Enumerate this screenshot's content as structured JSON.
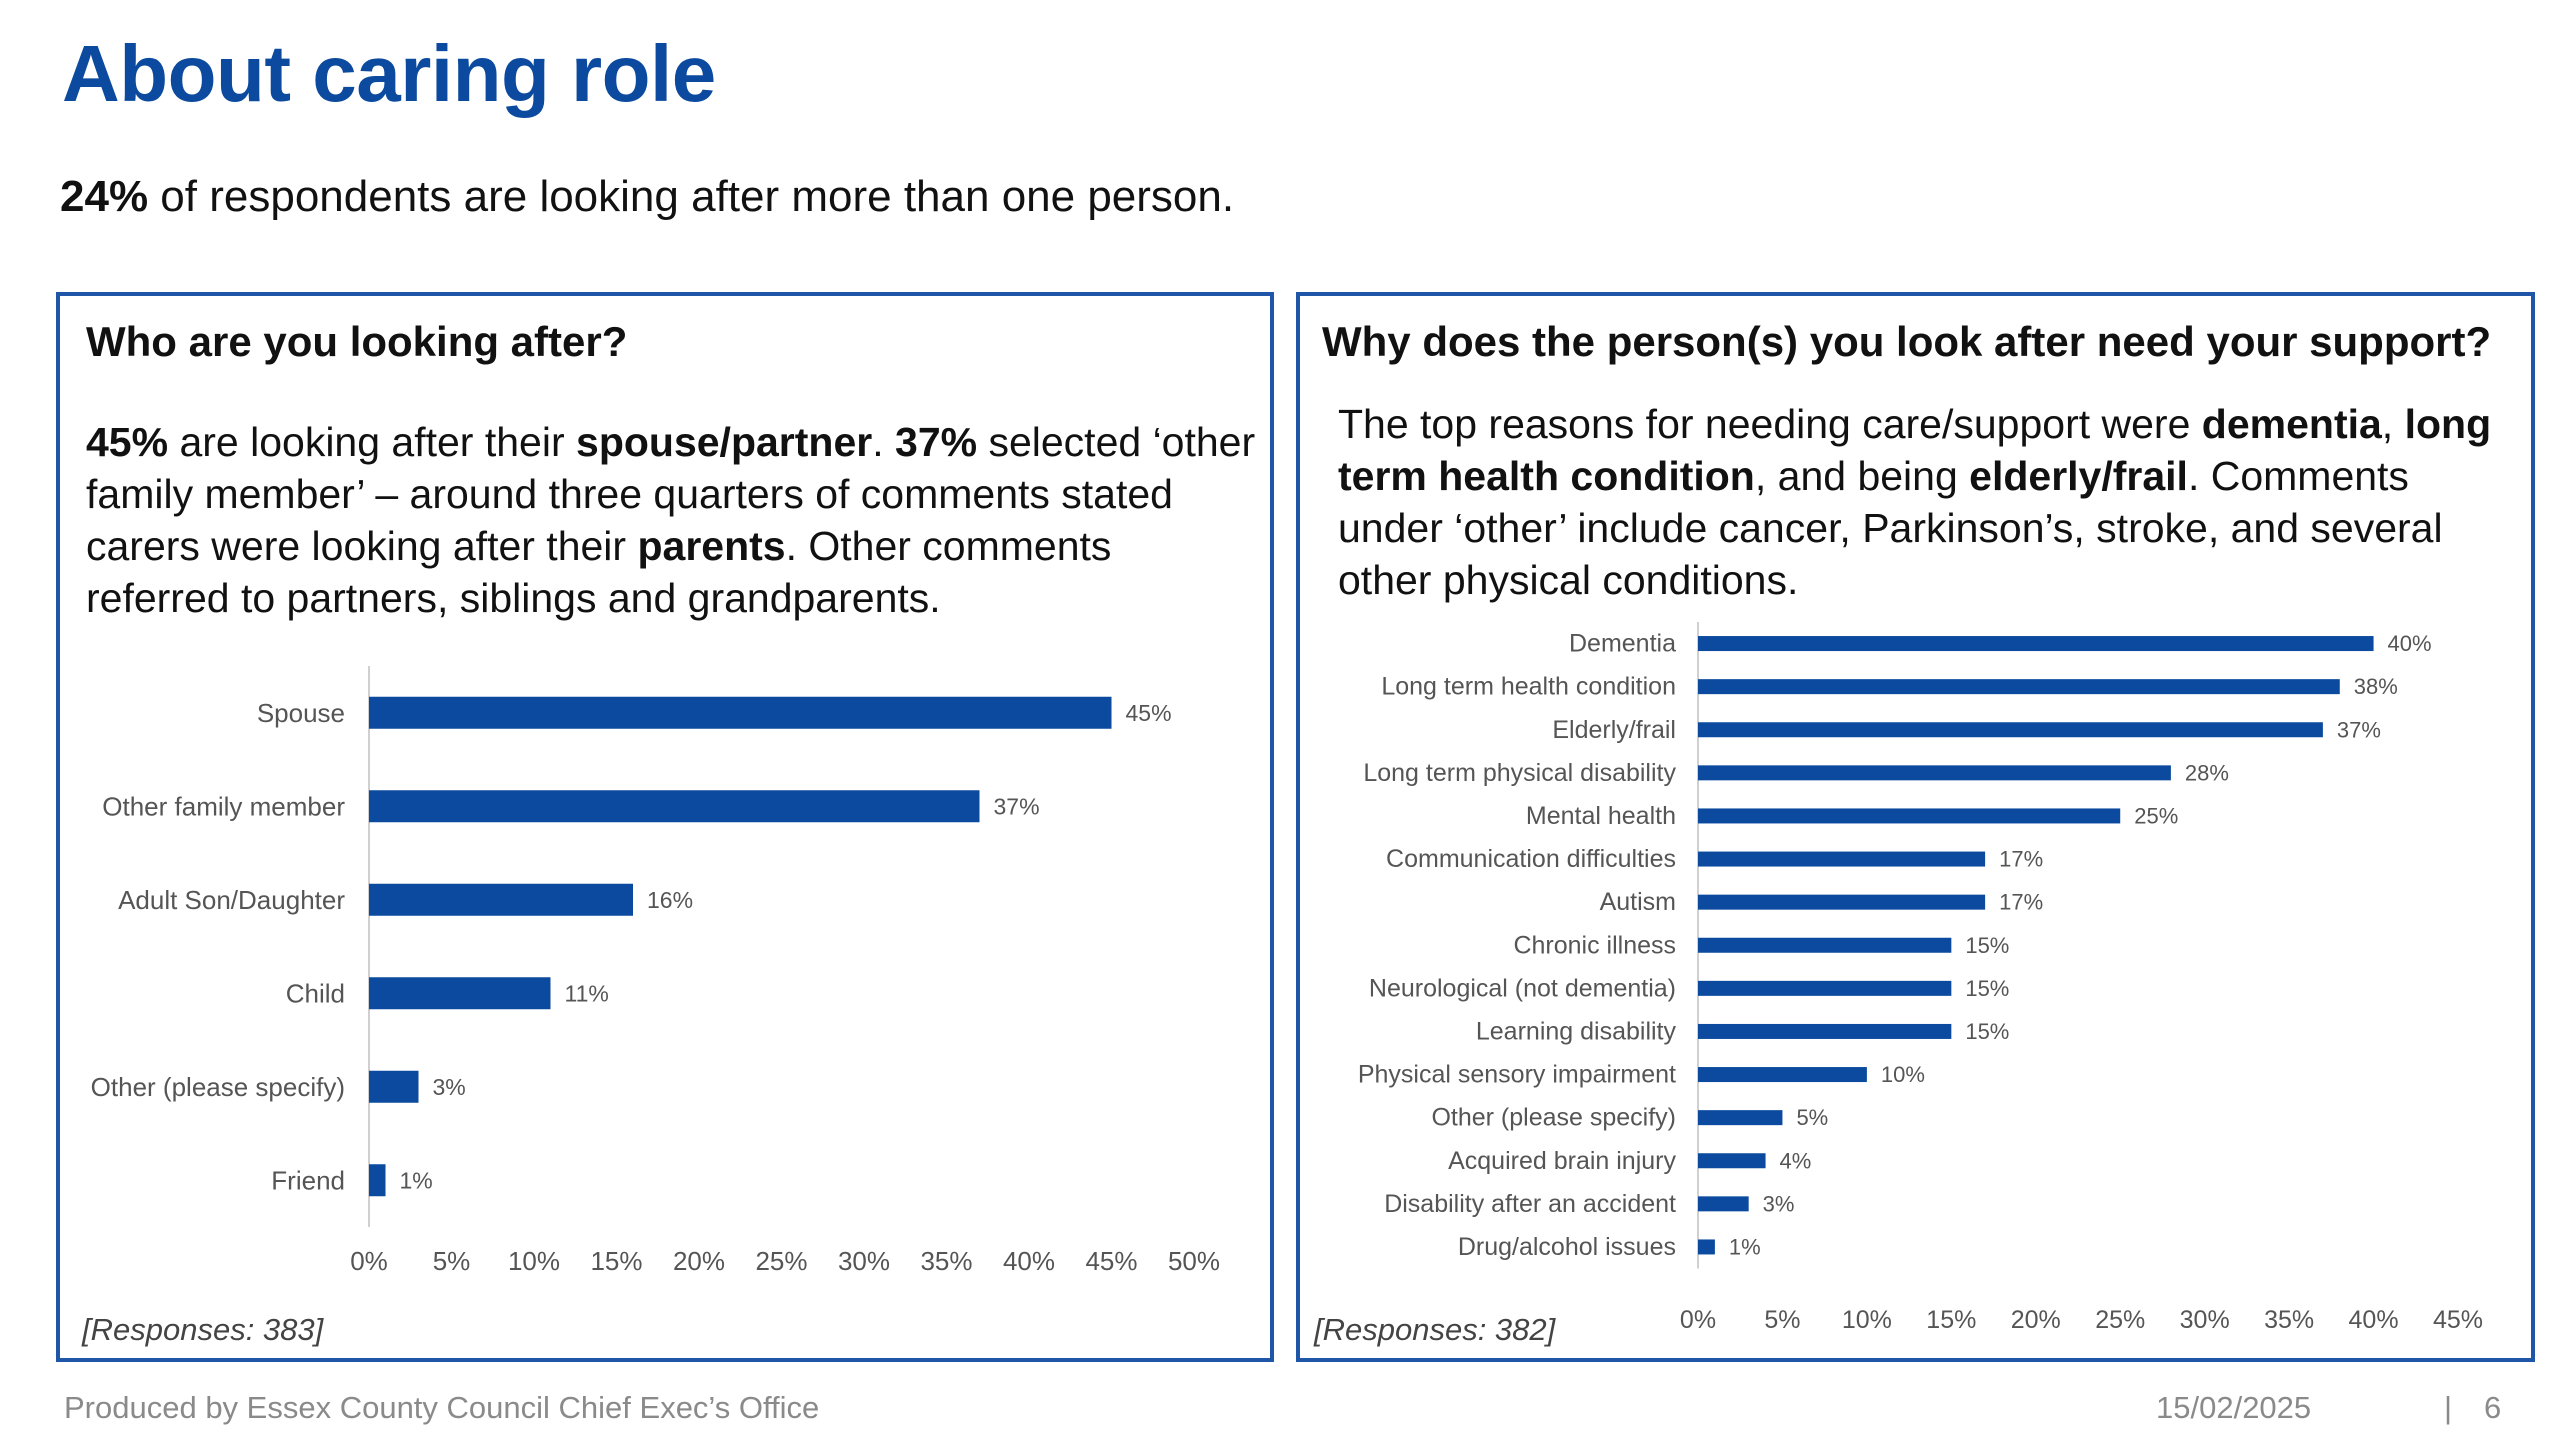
{
  "title": "About caring role",
  "subtitle": {
    "bold": "24%",
    "text": " of respondents are looking after more than one person."
  },
  "panels": [
    {
      "heading": "Who are you looking after?",
      "body_parts": [
        {
          "t": "45%",
          "b": true
        },
        {
          "t": " are looking after their ",
          "b": false
        },
        {
          "t": "spouse/partner",
          "b": true
        },
        {
          "t": ". ",
          "b": false
        },
        {
          "t": "37%",
          "b": true
        },
        {
          "t": " selected ‘other family member’ – around three quarters of comments stated carers were looking after their ",
          "b": false
        },
        {
          "t": "parents",
          "b": true
        },
        {
          "t": ". Other comments referred to partners, siblings and grandparents.",
          "b": false
        }
      ],
      "responses": "[Responses: 383]"
    },
    {
      "heading": "Why does the person(s) you look after need your support?",
      "body_parts": [
        {
          "t": "The top reasons for needing care/support were ",
          "b": false
        },
        {
          "t": "dementia",
          "b": true
        },
        {
          "t": ", ",
          "b": false
        },
        {
          "t": "long term health condition",
          "b": true
        },
        {
          "t": ", and being ",
          "b": false
        },
        {
          "t": "elderly/frail",
          "b": true
        },
        {
          "t": ". Comments under ‘other’ include cancer, Parkinson’s, stroke, and several other physical conditions.",
          "b": false
        }
      ],
      "responses": "[Responses: 382]"
    }
  ],
  "chart_data": [
    {
      "type": "bar",
      "orientation": "horizontal",
      "title": "",
      "categories": [
        "Spouse",
        "Other family member",
        "Adult Son/Daughter",
        "Child",
        "Other (please specify)",
        "Friend"
      ],
      "values": [
        45,
        37,
        16,
        11,
        3,
        1
      ],
      "value_labels": [
        "45%",
        "37%",
        "16%",
        "11%",
        "3%",
        "1%"
      ],
      "xlim": [
        0,
        50
      ],
      "x_ticks": [
        "0%",
        "5%",
        "10%",
        "15%",
        "20%",
        "25%",
        "30%",
        "35%",
        "40%",
        "45%",
        "50%"
      ],
      "grid": false,
      "color": "#0b4a9e"
    },
    {
      "type": "bar",
      "orientation": "horizontal",
      "title": "",
      "categories": [
        "Dementia",
        "Long term health condition",
        "Elderly/frail",
        "Long term physical disability",
        "Mental health",
        "Communication difficulties",
        "Autism",
        "Chronic illness",
        "Neurological (not dementia)",
        "Learning disability",
        "Physical sensory impairment",
        "Other (please specify)",
        "Acquired brain injury",
        "Disability after an accident",
        "Drug/alcohol issues"
      ],
      "values": [
        40,
        38,
        37,
        28,
        25,
        17,
        17,
        15,
        15,
        15,
        10,
        5,
        4,
        3,
        1
      ],
      "value_labels": [
        "40%",
        "38%",
        "37%",
        "28%",
        "25%",
        "17%",
        "17%",
        "15%",
        "15%",
        "15%",
        "10%",
        "5%",
        "4%",
        "3%",
        "1%"
      ],
      "xlim": [
        0,
        45
      ],
      "x_ticks": [
        "0%",
        "5%",
        "10%",
        "15%",
        "20%",
        "25%",
        "30%",
        "35%",
        "40%",
        "45%"
      ],
      "grid": false,
      "color": "#0b4a9e"
    }
  ],
  "footer": {
    "left": "Produced by Essex County Council Chief Exec’s Office",
    "date": "15/02/2025",
    "separator": "|",
    "page": "6"
  }
}
